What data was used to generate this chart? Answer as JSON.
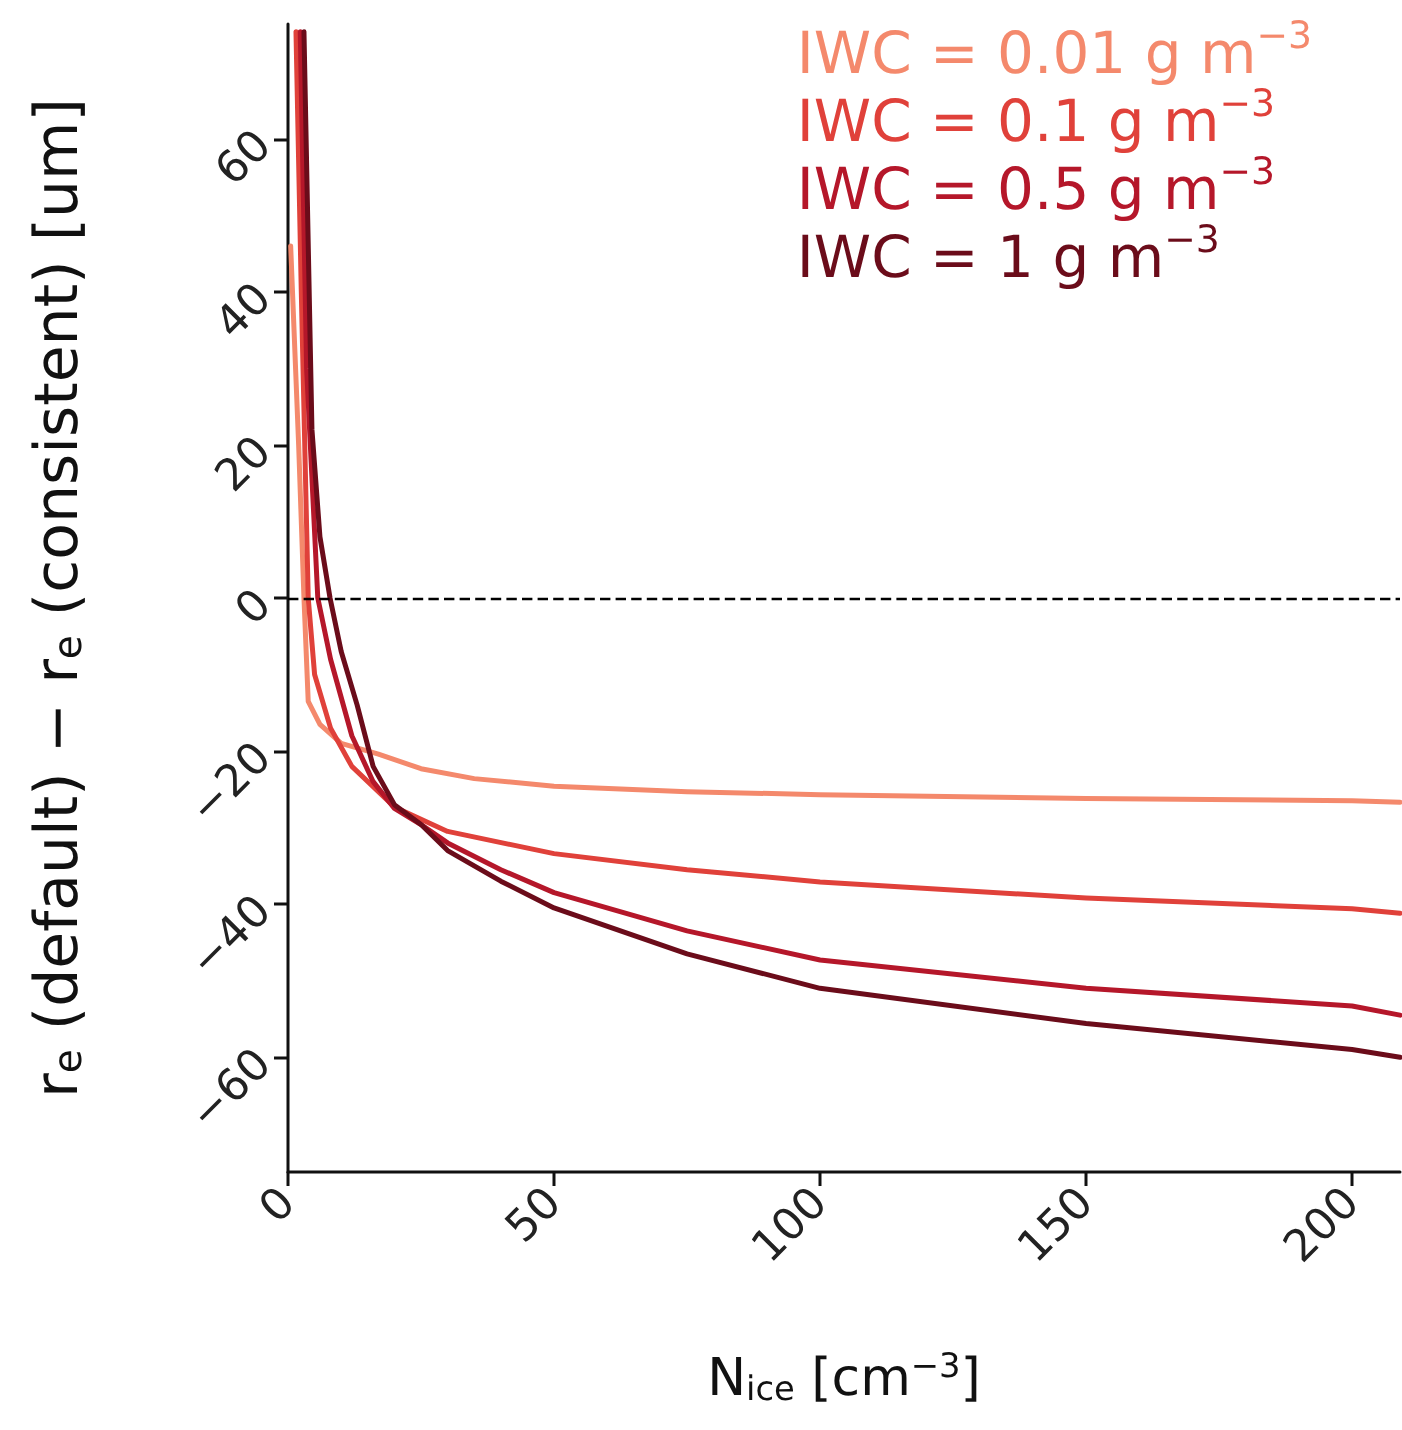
{
  "chart_data": {
    "type": "line",
    "xlabel": "N$_{ice}$ [cm$^{−3}$]",
    "ylabel": "r$_{e}$ (default) − r$_{e}$ (consistent) [um]",
    "xlim": [
      0,
      209
    ],
    "ylim": [
      -75,
      75
    ],
    "xticks": [
      0,
      50,
      100,
      150,
      200
    ],
    "yticks": [
      {
        "value": -60,
        "label": "−60"
      },
      {
        "value": -40,
        "label": "−40"
      },
      {
        "value": -20,
        "label": "−20"
      },
      0,
      20,
      40,
      60
    ],
    "grid": false,
    "legend": "top right",
    "marker": "none",
    "line_style": "solid",
    "ref_lines": [
      {
        "axis": "y",
        "value": 0,
        "color": "#000000",
        "line_style": "dashed"
      }
    ],
    "series": [
      {
        "name": "IWC = 0.01 g m$^{−3}$",
        "color": "#f4896c",
        "x": [
          0.5,
          2,
          3,
          3.8,
          6,
          10,
          17,
          25,
          35,
          50,
          75,
          100,
          150,
          200,
          209
        ],
        "values": [
          46,
          20,
          0,
          -13.5,
          -16.5,
          -19,
          -20.4,
          -22.3,
          -23.6,
          -24.6,
          -25.3,
          -25.7,
          -26.2,
          -26.5,
          -26.7
        ]
      },
      {
        "name": "IWC = 0.1 g m$^{−3}$",
        "color": "#e0413a",
        "x": [
          1.5,
          2.5,
          3.8,
          5,
          8,
          12,
          20,
          30,
          50,
          75,
          100,
          150,
          200,
          209
        ],
        "values": [
          74,
          40,
          0,
          -10,
          -17,
          -22,
          -27.3,
          -30.5,
          -33.4,
          -35.5,
          -37.1,
          -39.2,
          -40.6,
          -41.2
        ]
      },
      {
        "name": "IWC = 0.5 g m$^{−3}$",
        "color": "#b5172a",
        "x": [
          2.3,
          3.5,
          5.6,
          8,
          12,
          16,
          20,
          25,
          30,
          40,
          50,
          75,
          100,
          150,
          200,
          209
        ],
        "values": [
          74,
          30,
          0,
          -8,
          -18,
          -24,
          -27.5,
          -29.6,
          -32,
          -35.5,
          -38.5,
          -43.5,
          -47.3,
          -51,
          -53.3,
          -54.5
        ]
      },
      {
        "name": "IWC = 1 g m$^{−3}$",
        "color": "#6b0c1a",
        "x": [
          3,
          4.5,
          6,
          7.9,
          10,
          13,
          16,
          20,
          25,
          30,
          40,
          50,
          75,
          100,
          150,
          200,
          209
        ],
        "values": [
          74,
          22,
          8,
          0,
          -7,
          -14,
          -22,
          -27,
          -29.6,
          -33,
          -37,
          -40.5,
          -46.5,
          -51,
          -55.6,
          -59,
          -60
        ]
      }
    ]
  }
}
